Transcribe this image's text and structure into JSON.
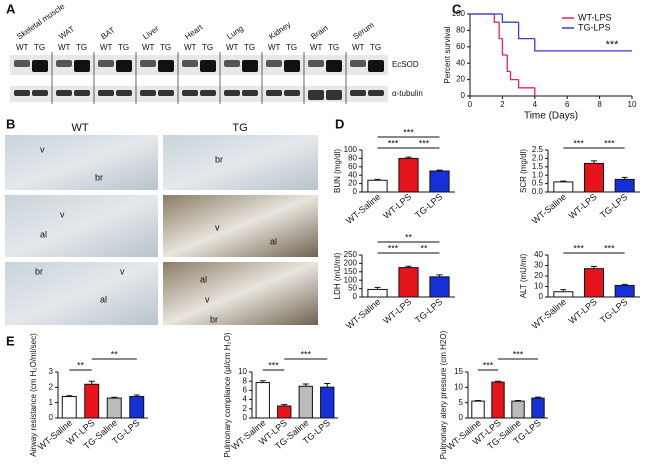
{
  "panels": [
    "A",
    "B",
    "C",
    "D",
    "E"
  ],
  "blot": {
    "tissues": [
      "Skeletal muscle",
      "WAT",
      "BAT",
      "Liver",
      "Heart",
      "Lung",
      "Kidney",
      "Brain",
      "Serum"
    ],
    "lanes": [
      "WT",
      "TG"
    ],
    "rows": [
      "EcSOD",
      "α-tubulin"
    ]
  },
  "histology": {
    "columns": [
      "WT",
      "TG"
    ],
    "marks": [
      "v",
      "br",
      "br",
      "al",
      "v",
      "v",
      "al",
      "br",
      "al",
      "v",
      "al",
      "v",
      "br"
    ]
  },
  "chart_data": [
    {
      "type": "line",
      "ylabel": "Percent survival",
      "xlabel": "Time (Days)",
      "xlim": [
        0,
        10
      ],
      "xticks": [
        0,
        2,
        4,
        6,
        8,
        10
      ],
      "ylim": [
        0,
        100
      ],
      "yticks": [
        0,
        20,
        40,
        60,
        80,
        100
      ],
      "series": [
        {
          "name": "WT-LPS",
          "color": "#e0206a",
          "x": [
            0,
            1.5,
            1.8,
            2,
            2.3,
            2.5,
            3,
            4
          ],
          "values": [
            100,
            90,
            70,
            50,
            30,
            20,
            10,
            0
          ]
        },
        {
          "name": "TG-LPS",
          "color": "#3a3acc",
          "x": [
            0,
            2,
            3,
            4,
            10
          ],
          "values": [
            100,
            90,
            70,
            55,
            55
          ]
        }
      ],
      "annotation": "***"
    },
    {
      "type": "bar",
      "ylabel": "BUN (mg/dl)",
      "categories": [
        "WT-Saline",
        "WT-LPS",
        "TG-LPS"
      ],
      "values": [
        28,
        80,
        50
      ],
      "errors": [
        2,
        3,
        2
      ],
      "colors": [
        "#ffffff",
        "#e8141c",
        "#1530d8"
      ],
      "ylim": [
        0,
        100
      ],
      "yticks": [
        0,
        20,
        40,
        60,
        80,
        100
      ],
      "annotations": [
        {
          "label": "***",
          "between": [
            0,
            2
          ]
        },
        {
          "label": "***",
          "between": [
            0,
            1
          ]
        },
        {
          "label": "***",
          "between": [
            1,
            2
          ]
        }
      ]
    },
    {
      "type": "bar",
      "ylabel": "SCR (mg/dl)",
      "categories": [
        "WT-Saline",
        "WT-LPS",
        "TG-LPS"
      ],
      "values": [
        0.6,
        1.7,
        0.75
      ],
      "errors": [
        0.05,
        0.15,
        0.12
      ],
      "colors": [
        "#ffffff",
        "#e8141c",
        "#1530d8"
      ],
      "ylim": [
        0,
        2.5
      ],
      "yticks": [
        {
          "value": 0,
          "label": "0.0"
        },
        0.5,
        {
          "value": 1,
          "label": "1.0"
        },
        1.5,
        {
          "value": 2,
          "label": "2.0"
        },
        2.5
      ],
      "annotations": [
        {
          "label": "***",
          "between": [
            0,
            1
          ]
        },
        {
          "label": "***",
          "between": [
            1,
            2
          ]
        }
      ]
    },
    {
      "type": "bar",
      "ylabel": "LDH (mU/ml)",
      "categories": [
        "WT-Saline",
        "WT-LPS",
        "TG-LPS"
      ],
      "values": [
        45,
        175,
        120
      ],
      "errors": [
        12,
        8,
        12
      ],
      "colors": [
        "#ffffff",
        "#e8141c",
        "#1530d8"
      ],
      "ylim": [
        0,
        250
      ],
      "yticks": [
        0,
        50,
        100,
        150,
        200,
        250
      ],
      "annotations": [
        {
          "label": "**",
          "between": [
            0,
            2
          ]
        },
        {
          "label": "***",
          "between": [
            0,
            1
          ]
        },
        {
          "label": "**",
          "between": [
            1,
            2
          ]
        }
      ]
    },
    {
      "type": "bar",
      "ylabel": "ALT (mU/ml)",
      "categories": [
        "WT-Saline",
        "WT-LPS",
        "TG-LPS"
      ],
      "values": [
        5,
        27,
        11
      ],
      "errors": [
        2,
        2,
        1
      ],
      "colors": [
        "#ffffff",
        "#e8141c",
        "#1530d8"
      ],
      "ylim": [
        0,
        40
      ],
      "yticks": [
        0,
        10,
        20,
        30,
        40
      ],
      "annotations": [
        {
          "label": "***",
          "between": [
            0,
            1
          ]
        },
        {
          "label": "***",
          "between": [
            1,
            2
          ]
        }
      ]
    },
    {
      "type": "bar",
      "ylabel": "Airway resistance (cm H₂O/ml/sec)",
      "categories": [
        "WT-Saline",
        "WT-LPS",
        "TG-Saline",
        "TG-LPS"
      ],
      "values": [
        1.4,
        2.2,
        1.3,
        1.4
      ],
      "errors": [
        0.05,
        0.2,
        0.05,
        0.1
      ],
      "colors": [
        "#ffffff",
        "#e8141c",
        "#bbbbbb",
        "#1530d8"
      ],
      "ylim": [
        0,
        3
      ],
      "yticks": [
        0,
        1,
        2,
        3
      ],
      "annotations": [
        {
          "label": "**",
          "between": [
            0,
            1
          ]
        },
        {
          "label": "**",
          "between": [
            1,
            3
          ]
        }
      ]
    },
    {
      "type": "bar",
      "ylabel": "Pulmonary compliance (μl/cm H₂O)",
      "categories": [
        "WT-Saline",
        "WT-LPS",
        "TG-Saline",
        "TG-LPS"
      ],
      "values": [
        7.7,
        2.6,
        6.9,
        6.7
      ],
      "errors": [
        0.4,
        0.3,
        0.5,
        0.8
      ],
      "colors": [
        "#ffffff",
        "#e8141c",
        "#bbbbbb",
        "#1530d8"
      ],
      "ylim": [
        0,
        10
      ],
      "yticks": [
        0,
        2,
        4,
        6,
        8,
        10
      ],
      "annotations": [
        {
          "label": "***",
          "between": [
            0,
            1
          ]
        },
        {
          "label": "***",
          "between": [
            1,
            3
          ]
        }
      ]
    },
    {
      "type": "bar",
      "ylabel": "Pulmonary atery pressure (cm H2O)",
      "categories": [
        "WT-Saline",
        "WT-LPS",
        "TG-Saline",
        "TG-LPS"
      ],
      "values": [
        5.5,
        11.7,
        5.5,
        6.5
      ],
      "errors": [
        0.2,
        0.3,
        0.2,
        0.3
      ],
      "colors": [
        "#ffffff",
        "#e8141c",
        "#bbbbbb",
        "#1530d8"
      ],
      "ylim": [
        0,
        15
      ],
      "yticks": [
        0,
        5,
        10,
        15
      ],
      "annotations": [
        {
          "label": "***",
          "between": [
            0,
            1
          ]
        },
        {
          "label": "***",
          "between": [
            1,
            3
          ]
        }
      ]
    }
  ]
}
